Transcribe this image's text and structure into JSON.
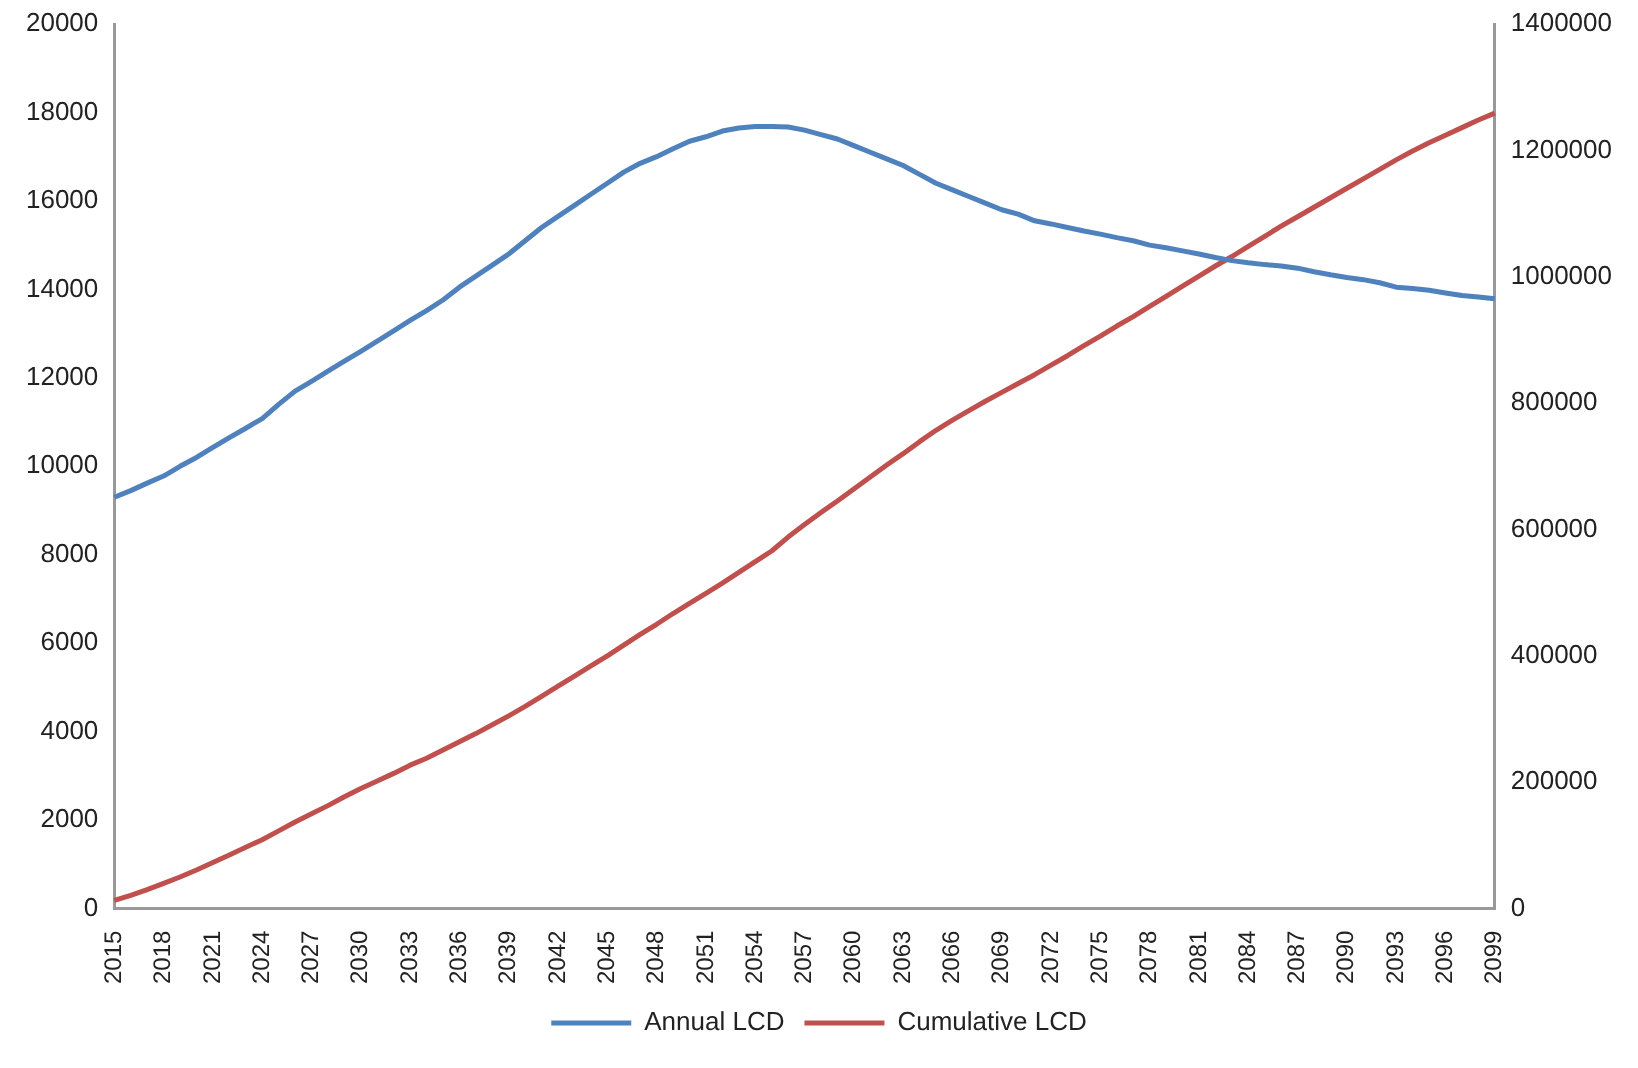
{
  "chart_data": {
    "type": "line",
    "categories": [
      "2015",
      null,
      null,
      "2018",
      null,
      null,
      "2021",
      null,
      null,
      "2024",
      null,
      null,
      "2027",
      null,
      null,
      "2030",
      null,
      null,
      "2033",
      null,
      null,
      "2036",
      null,
      null,
      "2039",
      null,
      null,
      "2042",
      null,
      null,
      "2045",
      null,
      null,
      "2048",
      null,
      null,
      "2051",
      null,
      null,
      "2054",
      null,
      null,
      "2057",
      null,
      null,
      "2060",
      null,
      null,
      "2063",
      null,
      null,
      "2066",
      null,
      null,
      "2069",
      null,
      null,
      "2072",
      null,
      null,
      "2075",
      null,
      null,
      "2078",
      null,
      null,
      "2081",
      null,
      null,
      "2084",
      null,
      null,
      "2087",
      null,
      null,
      "2090",
      null,
      null,
      "2093",
      null,
      null,
      "2096",
      null,
      null,
      "2099"
    ],
    "series": [
      {
        "name": "Annual LCD",
        "color": "#4f81bd",
        "values": [
          9300,
          9450,
          9620,
          9780,
          10000,
          10200,
          10430,
          10650,
          10860,
          11080,
          11400,
          11700,
          11920,
          12150,
          12380,
          12600,
          12830,
          13060,
          13300,
          13520,
          13760,
          14050,
          14300,
          14550,
          14800,
          15100,
          15400,
          15650,
          15900,
          16150,
          16400,
          16650,
          16850,
          17000,
          17180,
          17350,
          17450,
          17580,
          17650,
          17680,
          17680,
          17670,
          17600,
          17500,
          17400,
          17250,
          17100,
          16950,
          16800,
          16600,
          16400,
          16250,
          16100,
          15950,
          15800,
          15700,
          15550,
          15480,
          15400,
          15320,
          15250,
          15170,
          15100,
          15000,
          14940,
          14870,
          14800,
          14720,
          14650,
          14600,
          14560,
          14530,
          14480,
          14400,
          14330,
          14270,
          14220,
          14150,
          14050,
          14020,
          13980,
          13920,
          13860,
          13830,
          13790
        ]
      },
      {
        "name": "Cumulative LCD",
        "color": "#c0504d",
        "axis": "y2",
        "values": [
          13000,
          21000,
          30000,
          40000,
          50000,
          61000,
          73000,
          85000,
          97000,
          109000,
          123000,
          137000,
          150000,
          163000,
          177000,
          190000,
          202000,
          214000,
          227000,
          238000,
          251000,
          264000,
          277000,
          291000,
          305000,
          320000,
          336000,
          352000,
          368000,
          384000,
          400000,
          417000,
          434000,
          450000,
          467000,
          483000,
          499000,
          515000,
          532000,
          549000,
          566000,
          588000,
          608000,
          627000,
          645000,
          664000,
          683000,
          702000,
          720000,
          739000,
          757000,
          773000,
          788000,
          803000,
          817000,
          831000,
          845000,
          860000,
          875000,
          891000,
          906000,
          922000,
          937000,
          953000,
          969000,
          985000,
          1001000,
          1017000,
          1032000,
          1048000,
          1064000,
          1080000,
          1095000,
          1110000,
          1125000,
          1140000,
          1155000,
          1170000,
          1185000,
          1199000,
          1212000,
          1224000,
          1236000,
          1248000,
          1259000
        ]
      }
    ],
    "ylim": [
      0,
      20000
    ],
    "yticks": [
      0,
      2000,
      4000,
      6000,
      8000,
      10000,
      12000,
      14000,
      16000,
      18000,
      20000
    ],
    "y2lim": [
      0,
      1400000
    ],
    "y2ticks": [
      0,
      200000,
      400000,
      600000,
      800000,
      1000000,
      1200000,
      1400000
    ],
    "grid": false,
    "legend": "bottom",
    "marker": "none",
    "line_style": "solid"
  }
}
